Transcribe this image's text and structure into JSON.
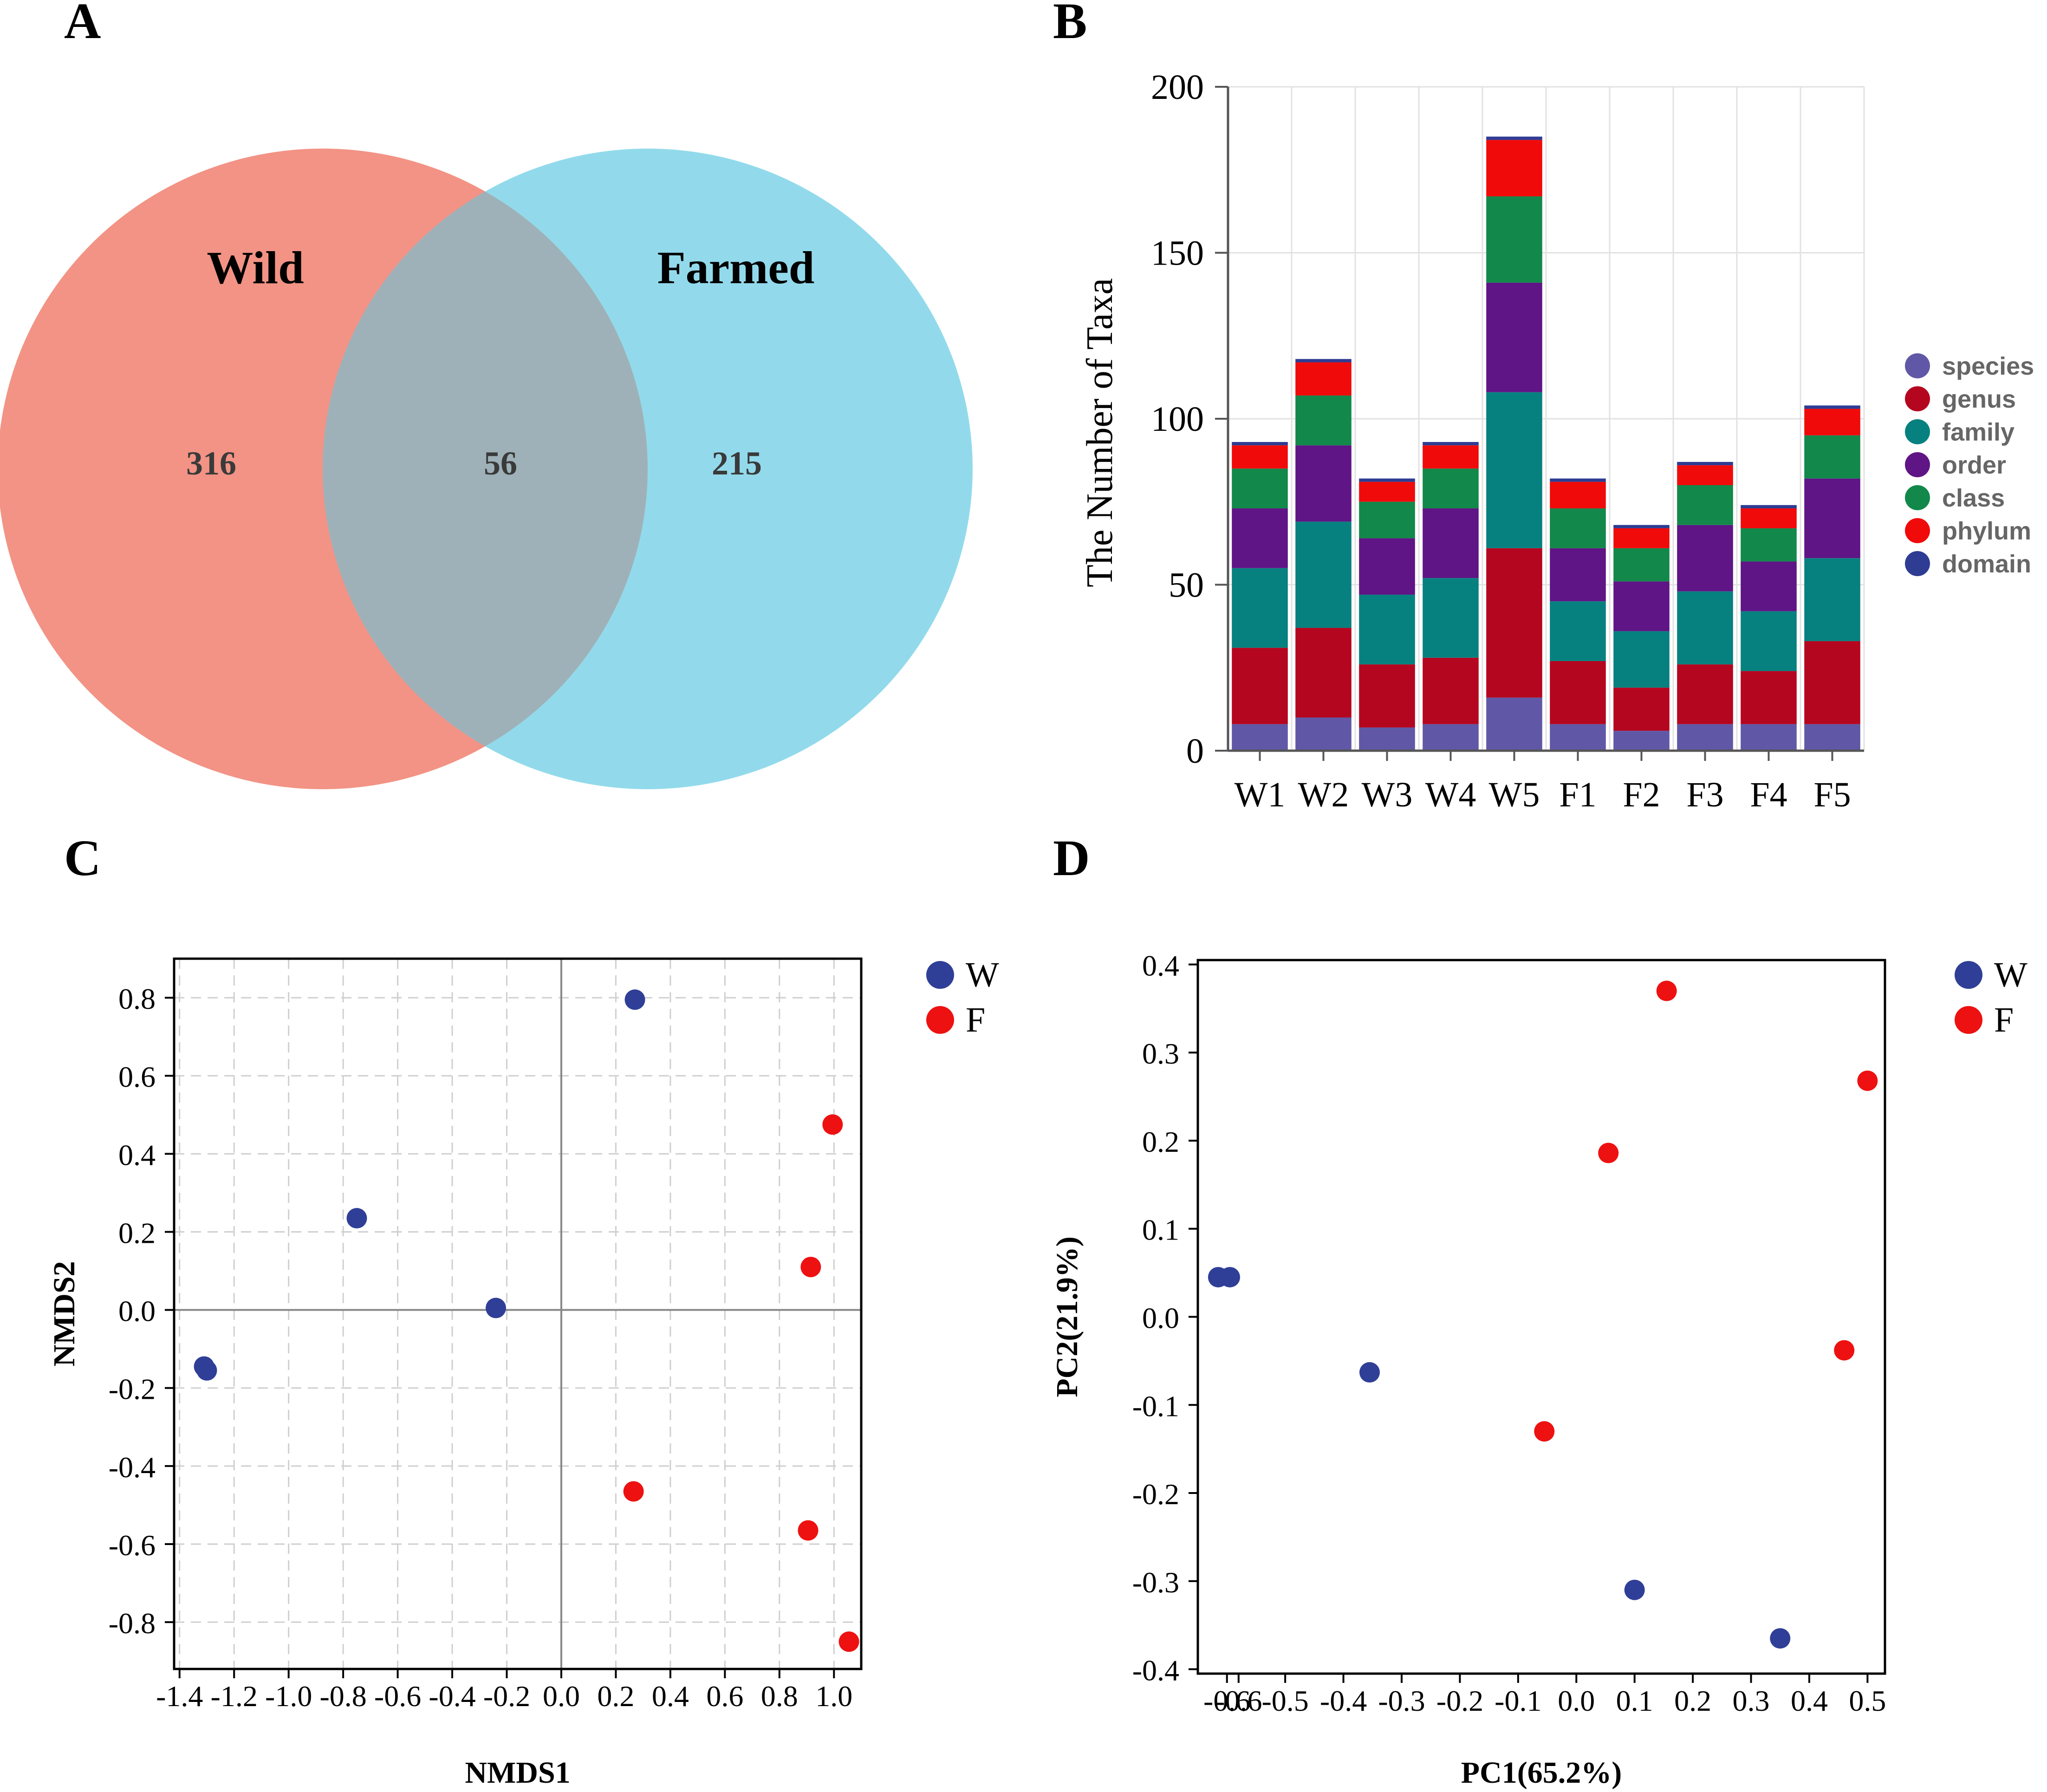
{
  "chart_data": [
    {
      "panel": "A",
      "type": "venn",
      "sets": [
        {
          "name": "Wild",
          "unique": 316,
          "color": "#f08070"
        },
        {
          "name": "Farmed",
          "unique": 215,
          "color": "#7fd4e8"
        }
      ],
      "overlap": 56,
      "overlap_color": "#9fb1b8"
    },
    {
      "panel": "B",
      "type": "bar",
      "stacked": true,
      "ylabel": "The Number of Taxa",
      "ylim": [
        0,
        200
      ],
      "yticks": [
        0,
        50,
        100,
        150,
        200
      ],
      "categories": [
        "W1",
        "W2",
        "W3",
        "W4",
        "W5",
        "F1",
        "F2",
        "F3",
        "F4",
        "F5"
      ],
      "series": [
        {
          "name": "domain",
          "color": "#2e3c93",
          "values": [
            1,
            1,
            1,
            1,
            1,
            1,
            1,
            1,
            1,
            1
          ]
        },
        {
          "name": "phylum",
          "color": "#f00a0a",
          "values": [
            7,
            10,
            6,
            7,
            17,
            8,
            6,
            6,
            6,
            8
          ]
        },
        {
          "name": "class",
          "color": "#12884a",
          "values": [
            12,
            15,
            11,
            12,
            26,
            12,
            10,
            12,
            10,
            13
          ]
        },
        {
          "name": "order",
          "color": "#5f1585",
          "values": [
            18,
            23,
            17,
            21,
            33,
            16,
            15,
            20,
            15,
            24
          ]
        },
        {
          "name": "family",
          "color": "#07817f",
          "values": [
            24,
            32,
            21,
            24,
            47,
            18,
            17,
            22,
            18,
            25
          ]
        },
        {
          "name": "genus",
          "color": "#b5061f",
          "values": [
            23,
            27,
            19,
            20,
            45,
            19,
            13,
            18,
            16,
            25
          ]
        },
        {
          "name": "species",
          "color": "#6058a6",
          "values": [
            8,
            10,
            7,
            8,
            16,
            8,
            6,
            8,
            8,
            8
          ]
        }
      ],
      "legend_order": [
        "species",
        "genus",
        "family",
        "order",
        "class",
        "phylum",
        "domain"
      ],
      "legend_placement": "right"
    },
    {
      "panel": "C",
      "type": "scatter",
      "xlabel": "NMDS1",
      "ylabel": "NMDS2",
      "xlim": [
        -1.42,
        1.1
      ],
      "ylim": [
        -0.92,
        0.9
      ],
      "xticks": [
        -1.4,
        -1.2,
        -1.0,
        -0.8,
        -0.6,
        -0.4,
        -0.2,
        0.0,
        0.2,
        0.4,
        0.6,
        0.8,
        1.0
      ],
      "xticklabels": [
        "-1.4",
        "-1.2",
        "-1.0",
        "-0.8",
        "-0.6",
        "-0.4",
        "-0.2",
        "0.0",
        "0.2",
        "0.4",
        "0.6",
        "0.8",
        "1.0"
      ],
      "yticks": [
        -0.8,
        -0.6,
        -0.4,
        -0.2,
        0.0,
        0.2,
        0.4,
        0.6,
        0.8
      ],
      "yticklabels": [
        "-0.8",
        "-0.6",
        "-0.4",
        "-0.2",
        "0.0",
        "0.2",
        "0.4",
        "0.6",
        "0.8"
      ],
      "grid": true,
      "zero_lines": true,
      "series": [
        {
          "name": "W",
          "color": "#2f3f97",
          "points": [
            [
              0.27,
              0.795
            ],
            [
              -0.75,
              0.235
            ],
            [
              -0.24,
              0.005
            ],
            [
              -1.31,
              -0.145
            ],
            [
              -1.3,
              -0.155
            ]
          ]
        },
        {
          "name": "F",
          "color": "#ee1111",
          "points": [
            [
              0.995,
              0.475
            ],
            [
              0.915,
              0.11
            ],
            [
              0.265,
              -0.465
            ],
            [
              0.905,
              -0.565
            ],
            [
              1.055,
              -0.85
            ]
          ]
        }
      ],
      "legend_placement": "right"
    },
    {
      "panel": "D",
      "type": "scatter",
      "xlabel": "PC1(65.2%)",
      "ylabel": "PC2(21.9%)",
      "xlim": [
        -0.65,
        0.53
      ],
      "ylim": [
        -0.405,
        0.405
      ],
      "xticks": [
        -0.6,
        -0.58,
        -0.5,
        -0.4,
        -0.3,
        -0.2,
        -0.1,
        0.0,
        0.1,
        0.2,
        0.3,
        0.4,
        0.5
      ],
      "xticklabels": [
        "-0.6",
        "-0.6",
        "-0.5",
        "-0.4",
        "-0.3",
        "-0.2",
        "-0.1",
        "0.0",
        "0.1",
        "0.2",
        "0.3",
        "0.4",
        "0.5"
      ],
      "yticks": [
        -0.4,
        -0.3,
        -0.2,
        -0.1,
        0.0,
        0.1,
        0.2,
        0.3,
        0.4
      ],
      "yticklabels": [
        "-0.4",
        "-0.3",
        "-0.2",
        "-0.1",
        "0.0",
        "0.1",
        "0.2",
        "0.3",
        "0.4"
      ],
      "grid": false,
      "series": [
        {
          "name": "W",
          "color": "#2f3f97",
          "points": [
            [
              -0.615,
              0.045
            ],
            [
              -0.595,
              0.045
            ],
            [
              -0.355,
              -0.063
            ],
            [
              0.1,
              -0.31
            ],
            [
              0.35,
              -0.365
            ]
          ]
        },
        {
          "name": "F",
          "color": "#ee1111",
          "points": [
            [
              0.155,
              0.37
            ],
            [
              0.5,
              0.268
            ],
            [
              0.055,
              0.186
            ],
            [
              0.46,
              -0.038
            ],
            [
              -0.055,
              -0.13
            ]
          ]
        }
      ],
      "legend_placement": "right"
    }
  ],
  "panel_labels": {
    "a": "A",
    "b": "B",
    "c": "C",
    "d": "D"
  }
}
